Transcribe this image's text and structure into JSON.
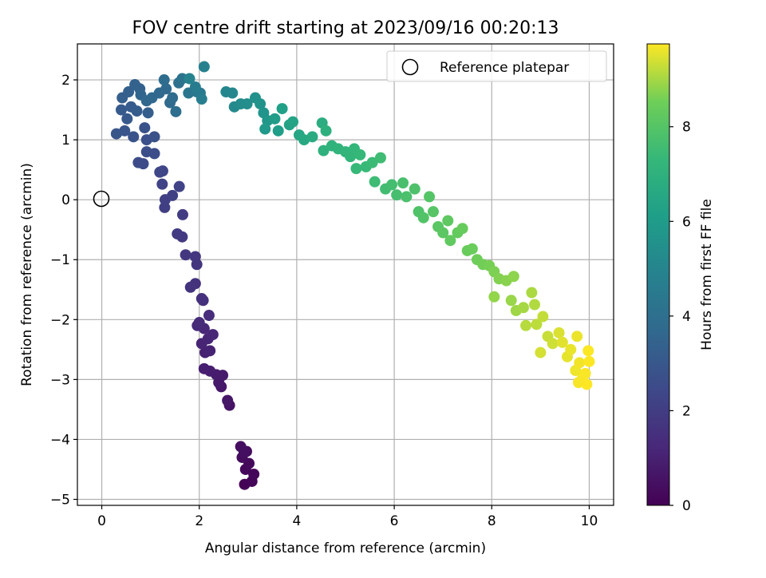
{
  "chart_data": {
    "type": "scatter",
    "title": "FOV centre drift starting at 2023/09/16 00:20:13",
    "xlabel": "Angular distance from reference (arcmin)",
    "ylabel": "Rotation from reference (arcmin)",
    "xlim": [
      -0.5,
      10.5
    ],
    "ylim": [
      -5.1,
      2.6
    ],
    "xticks": [
      0,
      2,
      4,
      6,
      8,
      10
    ],
    "yticks": [
      -5,
      -4,
      -3,
      -2,
      -1,
      0,
      1,
      2
    ],
    "grid": true,
    "legend": {
      "placement": "upper right",
      "entries": [
        "Reference platepar"
      ]
    },
    "reference_point": {
      "x": 0,
      "y": 0,
      "marker": "hollow circle"
    },
    "colorbar": {
      "label": "Hours from first FF file",
      "colormap": "viridis",
      "range": [
        0,
        9.75
      ],
      "ticks": [
        0,
        2,
        4,
        6,
        8
      ]
    },
    "series": [
      {
        "color_by": "hours from first FF file",
        "points": [
          {
            "x": 2.93,
            "y": -4.75,
            "h": 0.05
          },
          {
            "x": 3.08,
            "y": -4.7,
            "h": 0.1
          },
          {
            "x": 3.12,
            "y": -4.58,
            "h": 0.15
          },
          {
            "x": 2.95,
            "y": -4.5,
            "h": 0.2
          },
          {
            "x": 3.02,
            "y": -4.4,
            "h": 0.25
          },
          {
            "x": 2.88,
            "y": -4.3,
            "h": 0.3
          },
          {
            "x": 2.97,
            "y": -4.2,
            "h": 0.35
          },
          {
            "x": 2.85,
            "y": -4.12,
            "h": 0.4
          },
          {
            "x": 2.92,
            "y": -4.22,
            "h": 0.45
          },
          {
            "x": 2.62,
            "y": -3.43,
            "h": 0.6
          },
          {
            "x": 2.58,
            "y": -3.35,
            "h": 0.65
          },
          {
            "x": 2.45,
            "y": -3.12,
            "h": 0.7
          },
          {
            "x": 2.4,
            "y": -3.05,
            "h": 0.75
          },
          {
            "x": 2.48,
            "y": -2.93,
            "h": 0.8
          },
          {
            "x": 2.35,
            "y": -2.92,
            "h": 0.85
          },
          {
            "x": 2.22,
            "y": -2.86,
            "h": 0.9
          },
          {
            "x": 2.1,
            "y": -2.82,
            "h": 0.95
          },
          {
            "x": 2.12,
            "y": -2.55,
            "h": 1.0
          },
          {
            "x": 2.22,
            "y": -2.52,
            "h": 1.05
          },
          {
            "x": 2.05,
            "y": -2.4,
            "h": 1.1
          },
          {
            "x": 2.18,
            "y": -2.32,
            "h": 1.15
          },
          {
            "x": 2.28,
            "y": -2.25,
            "h": 1.2
          },
          {
            "x": 2.1,
            "y": -2.15,
            "h": 1.25
          },
          {
            "x": 1.96,
            "y": -2.1,
            "h": 1.3
          },
          {
            "x": 2.0,
            "y": -2.05,
            "h": 1.35
          },
          {
            "x": 2.2,
            "y": -1.93,
            "h": 1.4
          },
          {
            "x": 2.08,
            "y": -1.68,
            "h": 1.5
          },
          {
            "x": 2.05,
            "y": -1.65,
            "h": 1.55
          },
          {
            "x": 1.92,
            "y": -1.4,
            "h": 1.6
          },
          {
            "x": 1.82,
            "y": -1.46,
            "h": 1.65
          },
          {
            "x": 1.95,
            "y": -1.08,
            "h": 1.7
          },
          {
            "x": 1.92,
            "y": -0.95,
            "h": 1.75
          },
          {
            "x": 1.72,
            "y": -0.92,
            "h": 1.8
          },
          {
            "x": 1.65,
            "y": -0.62,
            "h": 1.85
          },
          {
            "x": 1.55,
            "y": -0.57,
            "h": 1.9
          },
          {
            "x": 1.66,
            "y": -0.25,
            "h": 2.0
          },
          {
            "x": 1.29,
            "y": -0.13,
            "h": 2.05
          },
          {
            "x": 1.3,
            "y": 0.0,
            "h": 2.1
          },
          {
            "x": 1.45,
            "y": 0.07,
            "h": 2.15
          },
          {
            "x": 1.59,
            "y": 0.22,
            "h": 2.2
          },
          {
            "x": 1.24,
            "y": 0.26,
            "h": 2.25
          },
          {
            "x": 1.25,
            "y": 0.48,
            "h": 2.3
          },
          {
            "x": 1.19,
            "y": 0.46,
            "h": 2.35
          },
          {
            "x": 0.85,
            "y": 0.6,
            "h": 2.5
          },
          {
            "x": 0.75,
            "y": 0.62,
            "h": 2.55
          },
          {
            "x": 1.08,
            "y": 0.77,
            "h": 2.6
          },
          {
            "x": 0.92,
            "y": 0.8,
            "h": 2.65
          },
          {
            "x": 0.92,
            "y": 1.0,
            "h": 2.7
          },
          {
            "x": 1.08,
            "y": 1.05,
            "h": 2.75
          },
          {
            "x": 0.88,
            "y": 1.2,
            "h": 2.8
          },
          {
            "x": 0.65,
            "y": 1.05,
            "h": 2.85
          },
          {
            "x": 0.47,
            "y": 1.15,
            "h": 2.9
          },
          {
            "x": 0.3,
            "y": 1.1,
            "h": 2.95
          },
          {
            "x": 0.52,
            "y": 1.35,
            "h": 3.05
          },
          {
            "x": 0.4,
            "y": 1.5,
            "h": 3.1
          },
          {
            "x": 0.6,
            "y": 1.55,
            "h": 3.15
          },
          {
            "x": 0.72,
            "y": 1.48,
            "h": 3.2
          },
          {
            "x": 0.95,
            "y": 1.45,
            "h": 3.25
          },
          {
            "x": 0.42,
            "y": 1.7,
            "h": 3.3
          },
          {
            "x": 0.55,
            "y": 1.8,
            "h": 3.35
          },
          {
            "x": 0.78,
            "y": 1.85,
            "h": 3.4
          },
          {
            "x": 0.68,
            "y": 1.92,
            "h": 3.45
          },
          {
            "x": 0.8,
            "y": 1.75,
            "h": 3.55
          },
          {
            "x": 0.92,
            "y": 1.65,
            "h": 3.6
          },
          {
            "x": 1.03,
            "y": 1.7,
            "h": 3.65
          },
          {
            "x": 1.18,
            "y": 1.78,
            "h": 3.7
          },
          {
            "x": 1.32,
            "y": 1.85,
            "h": 3.75
          },
          {
            "x": 1.4,
            "y": 1.62,
            "h": 3.8
          },
          {
            "x": 1.45,
            "y": 1.7,
            "h": 3.85
          },
          {
            "x": 1.28,
            "y": 2.0,
            "h": 3.9
          },
          {
            "x": 1.52,
            "y": 1.47,
            "h": 3.95
          },
          {
            "x": 1.58,
            "y": 1.95,
            "h": 4.1
          },
          {
            "x": 1.65,
            "y": 2.02,
            "h": 4.2
          },
          {
            "x": 1.78,
            "y": 1.78,
            "h": 4.3
          },
          {
            "x": 1.95,
            "y": 1.8,
            "h": 4.4
          },
          {
            "x": 2.02,
            "y": 1.78,
            "h": 4.5
          },
          {
            "x": 1.92,
            "y": 1.88,
            "h": 4.6
          },
          {
            "x": 2.05,
            "y": 1.68,
            "h": 4.7
          },
          {
            "x": 2.1,
            "y": 2.22,
            "h": 4.8
          },
          {
            "x": 1.8,
            "y": 2.02,
            "h": 4.9
          },
          {
            "x": 2.55,
            "y": 1.8,
            "h": 5.0
          },
          {
            "x": 2.68,
            "y": 1.78,
            "h": 5.1
          },
          {
            "x": 2.72,
            "y": 1.55,
            "h": 5.2
          },
          {
            "x": 2.85,
            "y": 1.6,
            "h": 5.3
          },
          {
            "x": 2.98,
            "y": 1.6,
            "h": 5.4
          },
          {
            "x": 3.15,
            "y": 1.7,
            "h": 5.5
          },
          {
            "x": 3.25,
            "y": 1.6,
            "h": 5.6
          },
          {
            "x": 3.32,
            "y": 1.45,
            "h": 5.7
          },
          {
            "x": 3.4,
            "y": 1.32,
            "h": 5.8
          },
          {
            "x": 3.35,
            "y": 1.18,
            "h": 5.9
          },
          {
            "x": 3.55,
            "y": 1.35,
            "h": 6.0
          },
          {
            "x": 3.62,
            "y": 1.15,
            "h": 6.1
          },
          {
            "x": 3.7,
            "y": 1.52,
            "h": 6.2
          },
          {
            "x": 3.85,
            "y": 1.25,
            "h": 6.3
          },
          {
            "x": 3.92,
            "y": 1.3,
            "h": 6.4
          },
          {
            "x": 4.05,
            "y": 1.08,
            "h": 6.5
          },
          {
            "x": 4.15,
            "y": 1.0,
            "h": 6.6
          },
          {
            "x": 4.32,
            "y": 1.05,
            "h": 6.7
          },
          {
            "x": 4.52,
            "y": 1.28,
            "h": 6.8
          },
          {
            "x": 4.6,
            "y": 1.15,
            "h": 6.9
          },
          {
            "x": 4.55,
            "y": 0.82,
            "h": 7.0
          },
          {
            "x": 4.72,
            "y": 0.9,
            "h": 7.05
          },
          {
            "x": 4.85,
            "y": 0.85,
            "h": 7.1
          },
          {
            "x": 5.0,
            "y": 0.8,
            "h": 7.15
          },
          {
            "x": 5.1,
            "y": 0.72,
            "h": 7.2
          },
          {
            "x": 5.18,
            "y": 0.85,
            "h": 7.25
          },
          {
            "x": 5.3,
            "y": 0.75,
            "h": 7.3
          },
          {
            "x": 5.22,
            "y": 0.52,
            "h": 7.35
          },
          {
            "x": 5.42,
            "y": 0.55,
            "h": 7.4
          },
          {
            "x": 5.55,
            "y": 0.62,
            "h": 7.45
          },
          {
            "x": 5.6,
            "y": 0.3,
            "h": 7.5
          },
          {
            "x": 5.72,
            "y": 0.7,
            "h": 7.55
          },
          {
            "x": 5.82,
            "y": 0.18,
            "h": 7.6
          },
          {
            "x": 5.95,
            "y": 0.25,
            "h": 7.65
          },
          {
            "x": 6.05,
            "y": 0.08,
            "h": 7.7
          },
          {
            "x": 6.18,
            "y": 0.28,
            "h": 7.75
          },
          {
            "x": 6.25,
            "y": 0.05,
            "h": 7.8
          },
          {
            "x": 6.42,
            "y": 0.18,
            "h": 7.85
          },
          {
            "x": 6.5,
            "y": -0.2,
            "h": 7.9
          },
          {
            "x": 6.6,
            "y": -0.3,
            "h": 7.95
          },
          {
            "x": 6.72,
            "y": 0.05,
            "h": 8.0
          },
          {
            "x": 6.8,
            "y": -0.2,
            "h": 8.05
          },
          {
            "x": 6.9,
            "y": -0.45,
            "h": 8.1
          },
          {
            "x": 7.0,
            "y": -0.55,
            "h": 8.15
          },
          {
            "x": 7.1,
            "y": -0.35,
            "h": 8.2
          },
          {
            "x": 7.15,
            "y": -0.68,
            "h": 8.25
          },
          {
            "x": 7.3,
            "y": -0.55,
            "h": 8.3
          },
          {
            "x": 7.4,
            "y": -0.48,
            "h": 8.35
          },
          {
            "x": 7.5,
            "y": -0.85,
            "h": 8.4
          },
          {
            "x": 7.6,
            "y": -0.82,
            "h": 8.45
          },
          {
            "x": 7.7,
            "y": -1.0,
            "h": 8.5
          },
          {
            "x": 7.82,
            "y": -1.08,
            "h": 8.55
          },
          {
            "x": 7.95,
            "y": -1.1,
            "h": 8.6
          },
          {
            "x": 8.05,
            "y": -1.2,
            "h": 8.65
          },
          {
            "x": 8.15,
            "y": -1.32,
            "h": 8.7
          },
          {
            "x": 8.3,
            "y": -1.35,
            "h": 8.75
          },
          {
            "x": 8.45,
            "y": -1.28,
            "h": 8.8
          },
          {
            "x": 8.05,
            "y": -1.62,
            "h": 8.85
          },
          {
            "x": 8.4,
            "y": -1.68,
            "h": 8.9
          },
          {
            "x": 8.5,
            "y": -1.85,
            "h": 8.95
          },
          {
            "x": 8.65,
            "y": -1.8,
            "h": 9.0
          },
          {
            "x": 8.82,
            "y": -1.55,
            "h": 9.05
          },
          {
            "x": 8.88,
            "y": -1.75,
            "h": 9.1
          },
          {
            "x": 8.7,
            "y": -2.1,
            "h": 9.15
          },
          {
            "x": 8.92,
            "y": -2.08,
            "h": 9.2
          },
          {
            "x": 9.05,
            "y": -1.95,
            "h": 9.25
          },
          {
            "x": 9.15,
            "y": -2.28,
            "h": 9.3
          },
          {
            "x": 9.25,
            "y": -2.4,
            "h": 9.35
          },
          {
            "x": 9.0,
            "y": -2.55,
            "h": 9.4
          },
          {
            "x": 9.38,
            "y": -2.22,
            "h": 9.45
          },
          {
            "x": 9.45,
            "y": -2.38,
            "h": 9.5
          },
          {
            "x": 9.55,
            "y": -2.62,
            "h": 9.55
          },
          {
            "x": 9.62,
            "y": -2.5,
            "h": 9.58
          },
          {
            "x": 9.75,
            "y": -2.28,
            "h": 9.6
          },
          {
            "x": 9.72,
            "y": -2.85,
            "h": 9.63
          },
          {
            "x": 9.8,
            "y": -2.72,
            "h": 9.66
          },
          {
            "x": 9.85,
            "y": -3.0,
            "h": 9.69
          },
          {
            "x": 9.78,
            "y": -3.05,
            "h": 9.7
          },
          {
            "x": 9.92,
            "y": -2.9,
            "h": 9.72
          },
          {
            "x": 9.98,
            "y": -2.52,
            "h": 9.74
          },
          {
            "x": 10.0,
            "y": -2.7,
            "h": 9.75
          },
          {
            "x": 9.95,
            "y": -3.08,
            "h": 9.75
          }
        ]
      }
    ]
  }
}
